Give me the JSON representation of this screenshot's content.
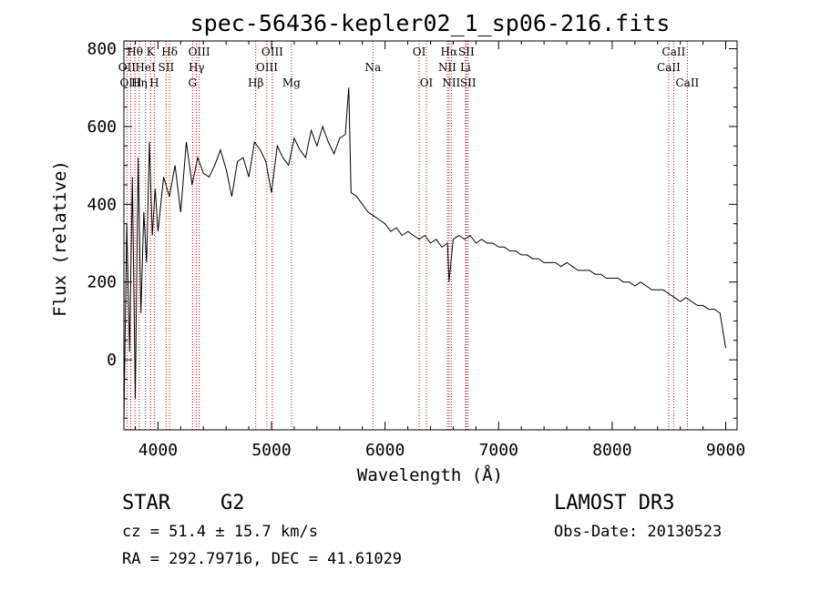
{
  "chart_data": {
    "type": "line",
    "title": "spec-56436-kepler02_1_sp06-216.fits",
    "xlabel": "Wavelength (Å)",
    "ylabel": "Flux (relative)",
    "xlim": [
      3700,
      9100
    ],
    "ylim": [
      -180,
      820
    ],
    "xticks": [
      4000,
      5000,
      6000,
      7000,
      8000,
      9000
    ],
    "yticks": [
      0,
      200,
      400,
      600,
      800
    ],
    "series": [
      {
        "name": "flux",
        "x": [
          3700,
          3725,
          3750,
          3775,
          3800,
          3825,
          3850,
          3875,
          3900,
          3925,
          3950,
          3975,
          4000,
          4050,
          4100,
          4150,
          4200,
          4250,
          4300,
          4350,
          4400,
          4450,
          4500,
          4550,
          4600,
          4650,
          4700,
          4750,
          4800,
          4850,
          4900,
          4950,
          5000,
          5050,
          5100,
          5150,
          5200,
          5250,
          5300,
          5350,
          5400,
          5450,
          5500,
          5550,
          5600,
          5650,
          5680,
          5700,
          5750,
          5800,
          5850,
          5900,
          5950,
          6000,
          6050,
          6100,
          6150,
          6200,
          6250,
          6300,
          6350,
          6400,
          6450,
          6500,
          6550,
          6563,
          6600,
          6650,
          6700,
          6750,
          6800,
          6850,
          6900,
          6950,
          7000,
          7050,
          7100,
          7150,
          7200,
          7250,
          7300,
          7350,
          7400,
          7450,
          7500,
          7550,
          7600,
          7650,
          7700,
          7750,
          7800,
          7850,
          7900,
          7950,
          8000,
          8050,
          8100,
          8150,
          8200,
          8250,
          8300,
          8350,
          8400,
          8450,
          8500,
          8550,
          8600,
          8650,
          8700,
          8750,
          8800,
          8850,
          8900,
          8950,
          9000
        ],
        "values": [
          -160,
          350,
          20,
          470,
          -100,
          520,
          120,
          380,
          250,
          560,
          320,
          440,
          330,
          470,
          420,
          500,
          380,
          560,
          450,
          520,
          480,
          470,
          500,
          540,
          490,
          420,
          510,
          520,
          470,
          560,
          540,
          510,
          430,
          550,
          520,
          500,
          570,
          540,
          520,
          590,
          550,
          600,
          560,
          530,
          570,
          580,
          700,
          430,
          420,
          400,
          380,
          370,
          360,
          350,
          330,
          340,
          320,
          330,
          320,
          310,
          320,
          300,
          310,
          290,
          300,
          200,
          310,
          320,
          310,
          320,
          300,
          310,
          300,
          300,
          290,
          290,
          280,
          280,
          270,
          270,
          260,
          260,
          250,
          250,
          250,
          240,
          250,
          240,
          230,
          230,
          230,
          220,
          220,
          210,
          210,
          210,
          200,
          200,
          190,
          200,
          190,
          180,
          180,
          180,
          170,
          160,
          150,
          160,
          150,
          140,
          140,
          130,
          130,
          120,
          30
        ]
      }
    ],
    "line_ids": [
      {
        "label": "Hθ",
        "wave": 3797,
        "row": 1
      },
      {
        "label": "K",
        "wave": 3934,
        "row": 1
      },
      {
        "label": "Hδ",
        "wave": 4102,
        "row": 1
      },
      {
        "label": "OIII",
        "wave": 4363,
        "row": 1
      },
      {
        "label": "OIII",
        "wave": 5007,
        "row": 1
      },
      {
        "label": "OI",
        "wave": 6300,
        "row": 1
      },
      {
        "label": "Hα",
        "wave": 6563,
        "row": 1
      },
      {
        "label": "SII",
        "wave": 6716,
        "row": 1
      },
      {
        "label": "CaII",
        "wave": 8542,
        "row": 1
      },
      {
        "label": "OII",
        "wave": 3727,
        "row": 2
      },
      {
        "label": "HeI",
        "wave": 3889,
        "row": 2
      },
      {
        "label": "SII",
        "wave": 4072,
        "row": 2
      },
      {
        "label": "Hγ",
        "wave": 4340,
        "row": 2
      },
      {
        "label": "OIII",
        "wave": 4959,
        "row": 2
      },
      {
        "label": "Na",
        "wave": 5893,
        "row": 2
      },
      {
        "label": "NII",
        "wave": 6548,
        "row": 2
      },
      {
        "label": "Li",
        "wave": 6708,
        "row": 2
      },
      {
        "label": "CaII",
        "wave": 8498,
        "row": 2
      },
      {
        "label": "OIII",
        "wave": 3760,
        "row": 3
      },
      {
        "label": "Hη",
        "wave": 3835,
        "row": 3
      },
      {
        "label": "H",
        "wave": 3968,
        "row": 3
      },
      {
        "label": "G",
        "wave": 4304,
        "row": 3
      },
      {
        "label": "Hβ",
        "wave": 4861,
        "row": 3
      },
      {
        "label": "Mg",
        "wave": 5175,
        "row": 3
      },
      {
        "label": "OI",
        "wave": 6364,
        "row": 3
      },
      {
        "label": "NII",
        "wave": 6583,
        "row": 3
      },
      {
        "label": "SII",
        "wave": 6731,
        "row": 3
      },
      {
        "label": "CaII",
        "wave": 8662,
        "row": 3
      }
    ],
    "line_color": "#000000",
    "marker_color": "#cc0000"
  },
  "info": {
    "object_class": "STAR",
    "subclass": "G2",
    "survey": "LAMOST DR3",
    "redshift": "cz = 51.4 ± 15.7 km/s",
    "obs_date": "Obs-Date: 20130523",
    "coords": "RA = 292.79716, DEC =  41.61029"
  }
}
